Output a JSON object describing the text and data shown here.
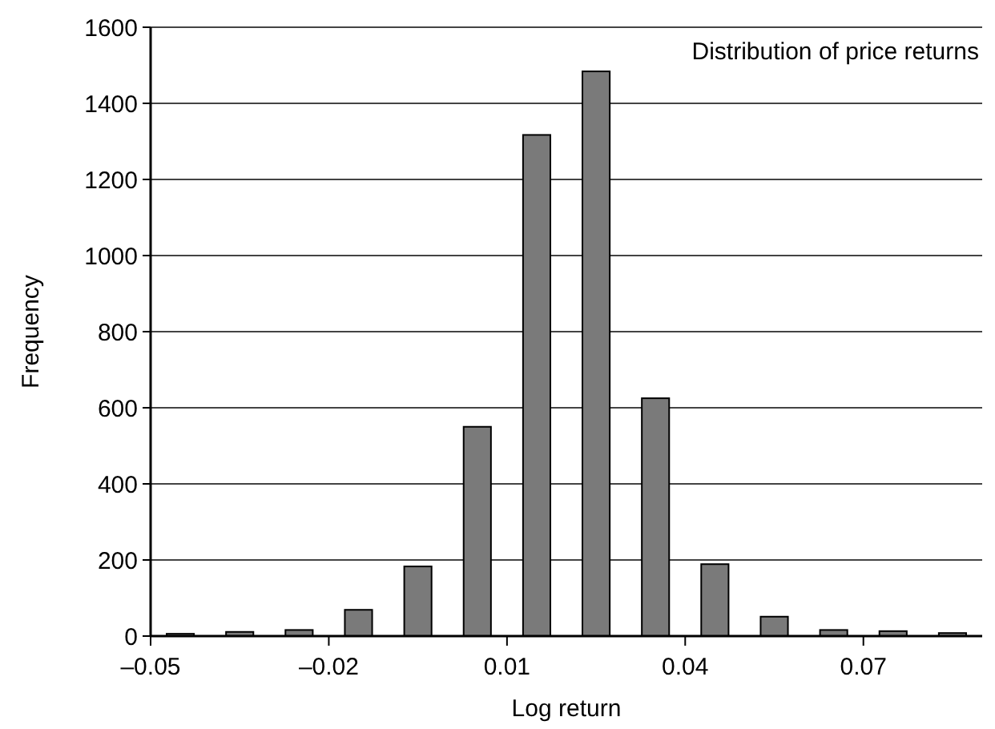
{
  "chart_data": {
    "type": "histogram",
    "title": "Distribution of price returns",
    "xlabel": "Log return",
    "ylabel": "Frequency",
    "bins": [
      -0.05,
      -0.04,
      -0.03,
      -0.02,
      -0.01,
      0,
      0.01,
      0.02,
      0.03,
      0.04,
      0.05,
      0.06,
      0.07,
      0.08,
      0.09
    ],
    "values": [
      6,
      11,
      16,
      69,
      183,
      550,
      1317,
      1484,
      625,
      189,
      51,
      16,
      13,
      8
    ],
    "color": "#7a7a7a",
    "xlim": [
      -0.05,
      0.09
    ],
    "xticks": [
      {
        "value": -0.05,
        "label": "–0.05"
      },
      {
        "value": -0.02,
        "label": "–0.02"
      },
      0.01,
      0.04,
      0.07
    ],
    "ylim": [
      0,
      1600
    ],
    "yticks": [
      0,
      200,
      400,
      600,
      800,
      1000,
      1200,
      1400,
      1600
    ],
    "grid": "y"
  }
}
